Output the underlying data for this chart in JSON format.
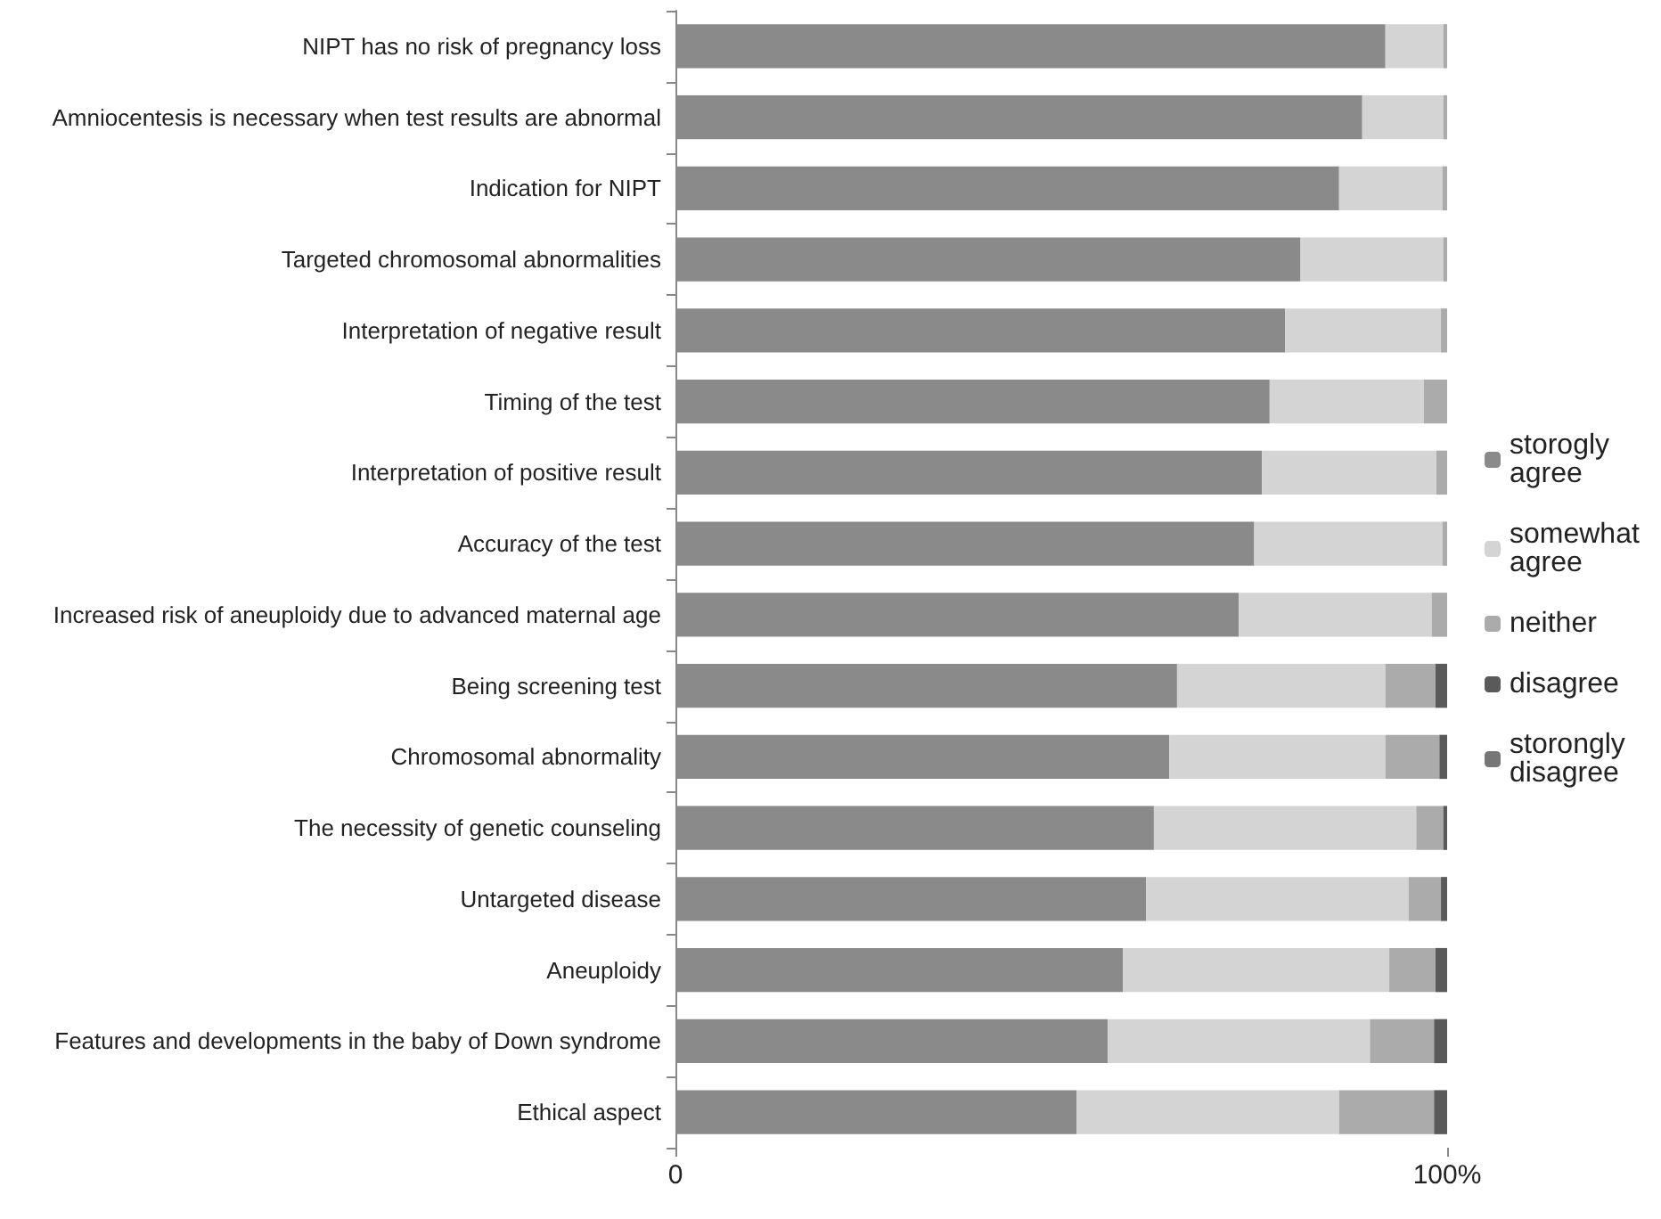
{
  "chart_data": {
    "type": "bar",
    "orientation": "horizontal",
    "stacked": true,
    "categories": [
      "NIPT has no risk of pregnancy loss",
      "Amniocentesis is necessary when test results are abnormal",
      "Indication for NIPT",
      "Targeted chromosomal abnormalities",
      "Interpretation of negative result",
      "Timing of the test",
      "Interpretation of positive result",
      "Accuracy of the test",
      "Increased risk of aneuploidy due to advanced maternal age",
      "Being screening test",
      "Chromosomal abnormality",
      "The necessity of genetic counseling",
      "Untargeted disease",
      "Aneuploidy",
      "Features and developments in the baby of Down syndrome",
      "Ethical aspect"
    ],
    "series": [
      {
        "name": "storogly agree",
        "color": "#8a8a8a",
        "values": [
          92,
          89,
          86,
          81,
          79,
          77,
          76,
          75,
          73,
          65,
          64,
          62,
          61,
          58,
          56,
          52
        ]
      },
      {
        "name": "somewhat agree",
        "color": "#d4d4d4",
        "values": [
          7.5,
          10.5,
          13.4,
          18.5,
          20.2,
          20,
          22.6,
          24.4,
          25,
          27,
          28,
          34,
          34,
          34.5,
          34,
          34
        ]
      },
      {
        "name": "neither",
        "color": "#ababab",
        "values": [
          0.5,
          0.5,
          0.6,
          0.5,
          0.8,
          3,
          1.4,
          0.6,
          2,
          6.5,
          7,
          3.5,
          4.2,
          6,
          8.3,
          12.3
        ]
      },
      {
        "name": "disagree",
        "color": "#5a5a5a",
        "values": [
          0,
          0,
          0,
          0,
          0,
          0,
          0,
          0,
          0,
          1.5,
          1,
          0.5,
          0.8,
          1.5,
          1.7,
          1.7
        ]
      },
      {
        "name": "storongly disagree",
        "color": "#767676",
        "values": [
          0,
          0,
          0,
          0,
          0,
          0,
          0,
          0,
          0,
          0,
          0,
          0,
          0,
          0,
          0,
          0
        ]
      }
    ],
    "xlim": [
      0,
      100
    ],
    "xticks": [
      0,
      {
        "value": 100,
        "label": "100%"
      }
    ],
    "grid": false,
    "legend": "right"
  }
}
